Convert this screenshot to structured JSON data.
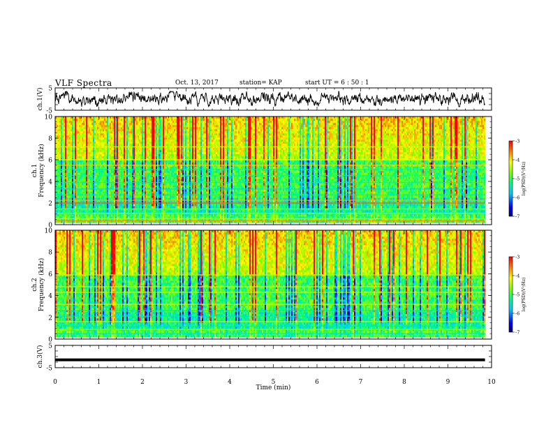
{
  "header": {
    "title": "VLF Spectra",
    "date": "Oct. 13, 2017",
    "station": "station= KAP",
    "start": "start  UT =  6 : 50 : 1"
  },
  "chart_data": [
    {
      "type": "line",
      "name": "ch1-waveform",
      "ylabel": "ch.1(V)",
      "ylim": [
        -5,
        5
      ],
      "xlim": [
        0,
        10
      ],
      "ytick_labels": [
        "5",
        "-5"
      ],
      "color": "#000000"
    },
    {
      "type": "heatmap",
      "name": "ch1-spectrogram",
      "ylabel": "ch.1\nFrequency (kHz)",
      "ylim": [
        0,
        10
      ],
      "xlim": [
        0,
        9.85
      ],
      "ytick_labels": [
        "0",
        "2",
        "4",
        "6",
        "8",
        "10"
      ],
      "colorbar": {
        "label": "log(PSD)(V²/Hz)",
        "range": [
          -7,
          -3
        ],
        "tick_labels": [
          "-3",
          "-4",
          "-5",
          "-6",
          "-7"
        ]
      },
      "bands_khz": [
        0.35,
        0.55,
        1.05,
        1.45,
        2.0,
        2.25,
        2.75,
        3.3,
        3.9,
        4.55,
        5.1,
        5.5,
        6.0,
        7.2
      ],
      "band_level": [
        -3.6,
        -4.0,
        -4.4,
        -4.6,
        -3.4,
        -3.8,
        -5.4,
        -5.6,
        -5.3,
        -5.2,
        -5.3,
        -3.9,
        -4.3,
        -4.3
      ]
    },
    {
      "type": "heatmap",
      "name": "ch2-spectrogram",
      "ylabel": "ch.2\nFrequency (kHz)",
      "ylim": [
        0,
        10
      ],
      "xlim": [
        0,
        9.85
      ],
      "ytick_labels": [
        "0",
        "2",
        "4",
        "6",
        "8",
        "10"
      ],
      "colorbar": {
        "label": "log(PSD)(V²/Hz)",
        "range": [
          -7,
          -3
        ],
        "tick_labels": [
          "-3",
          "-4",
          "-5",
          "-6",
          "-7"
        ]
      },
      "bands_khz": [
        0.5,
        0.9,
        1.2,
        1.6,
        2.1,
        2.6,
        3.2,
        4.3,
        4.8,
        5.9
      ],
      "band_level": [
        -5.5,
        -4.6,
        -5.5,
        -4.4,
        -5.4,
        -5.6,
        -4.3,
        -4.4,
        -4.3,
        -4.3
      ]
    },
    {
      "type": "line",
      "name": "ch3-waveform",
      "ylabel": "ch.3(V)",
      "ylim": [
        -5,
        5
      ],
      "xlim": [
        0,
        10
      ],
      "ytick_labels": [
        "5",
        "-5"
      ],
      "x": [
        0,
        9.85
      ],
      "y": [
        -1.5,
        -1.5
      ],
      "xlabel": "Time (min)",
      "xtick_labels": [
        "0",
        "1",
        "2",
        "3",
        "4",
        "5",
        "6",
        "7",
        "8",
        "9",
        "10"
      ],
      "color": "#000000"
    }
  ]
}
